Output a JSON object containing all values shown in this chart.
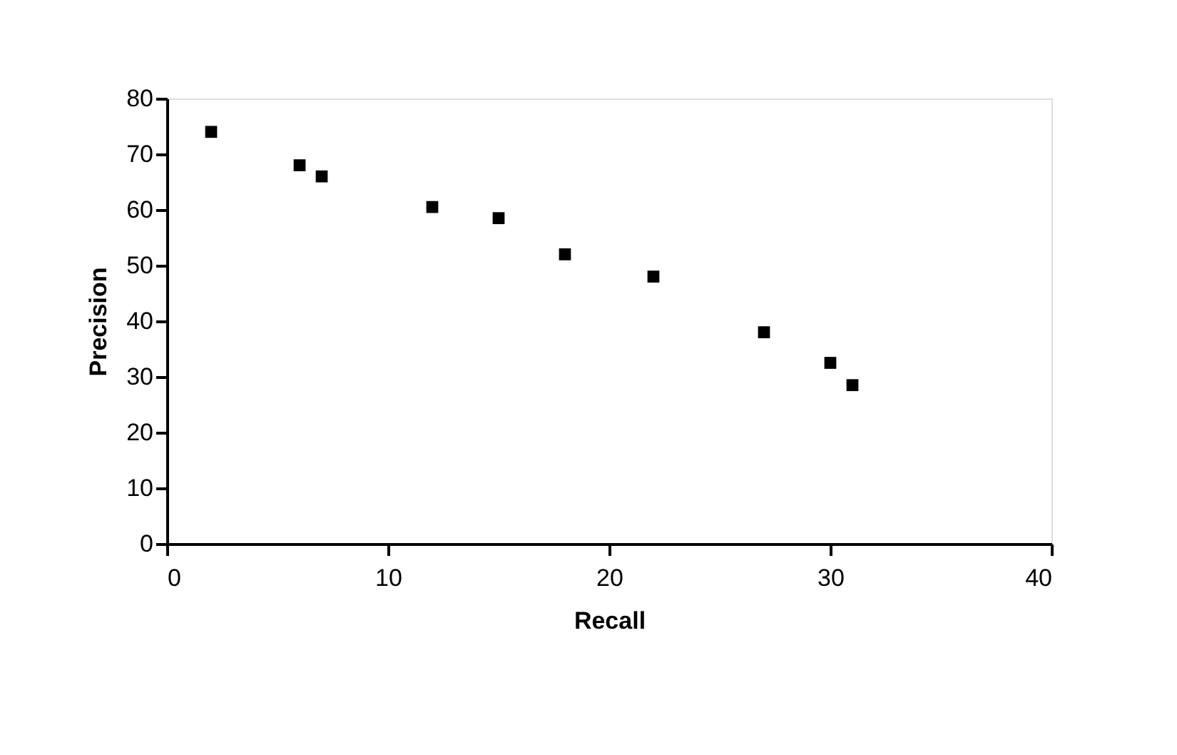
{
  "chart_data": {
    "type": "scatter",
    "xlabel": "Recall",
    "ylabel": "Precision",
    "x": [
      2,
      6,
      7,
      12,
      15,
      18,
      22,
      27,
      30,
      31
    ],
    "series": [
      {
        "color": "#000000",
        "values": [
          74,
          68,
          66,
          60.5,
          58.5,
          52,
          48,
          38,
          32.5,
          28.5
        ]
      }
    ],
    "xlim": [
      0,
      40
    ],
    "xticks": [
      0,
      10,
      20,
      30,
      40
    ],
    "ylim": [
      0,
      80
    ],
    "yticks": [
      0,
      10,
      20,
      30,
      40,
      50,
      60,
      70,
      80
    ],
    "marker": "square",
    "grid": false,
    "legend": false
  }
}
